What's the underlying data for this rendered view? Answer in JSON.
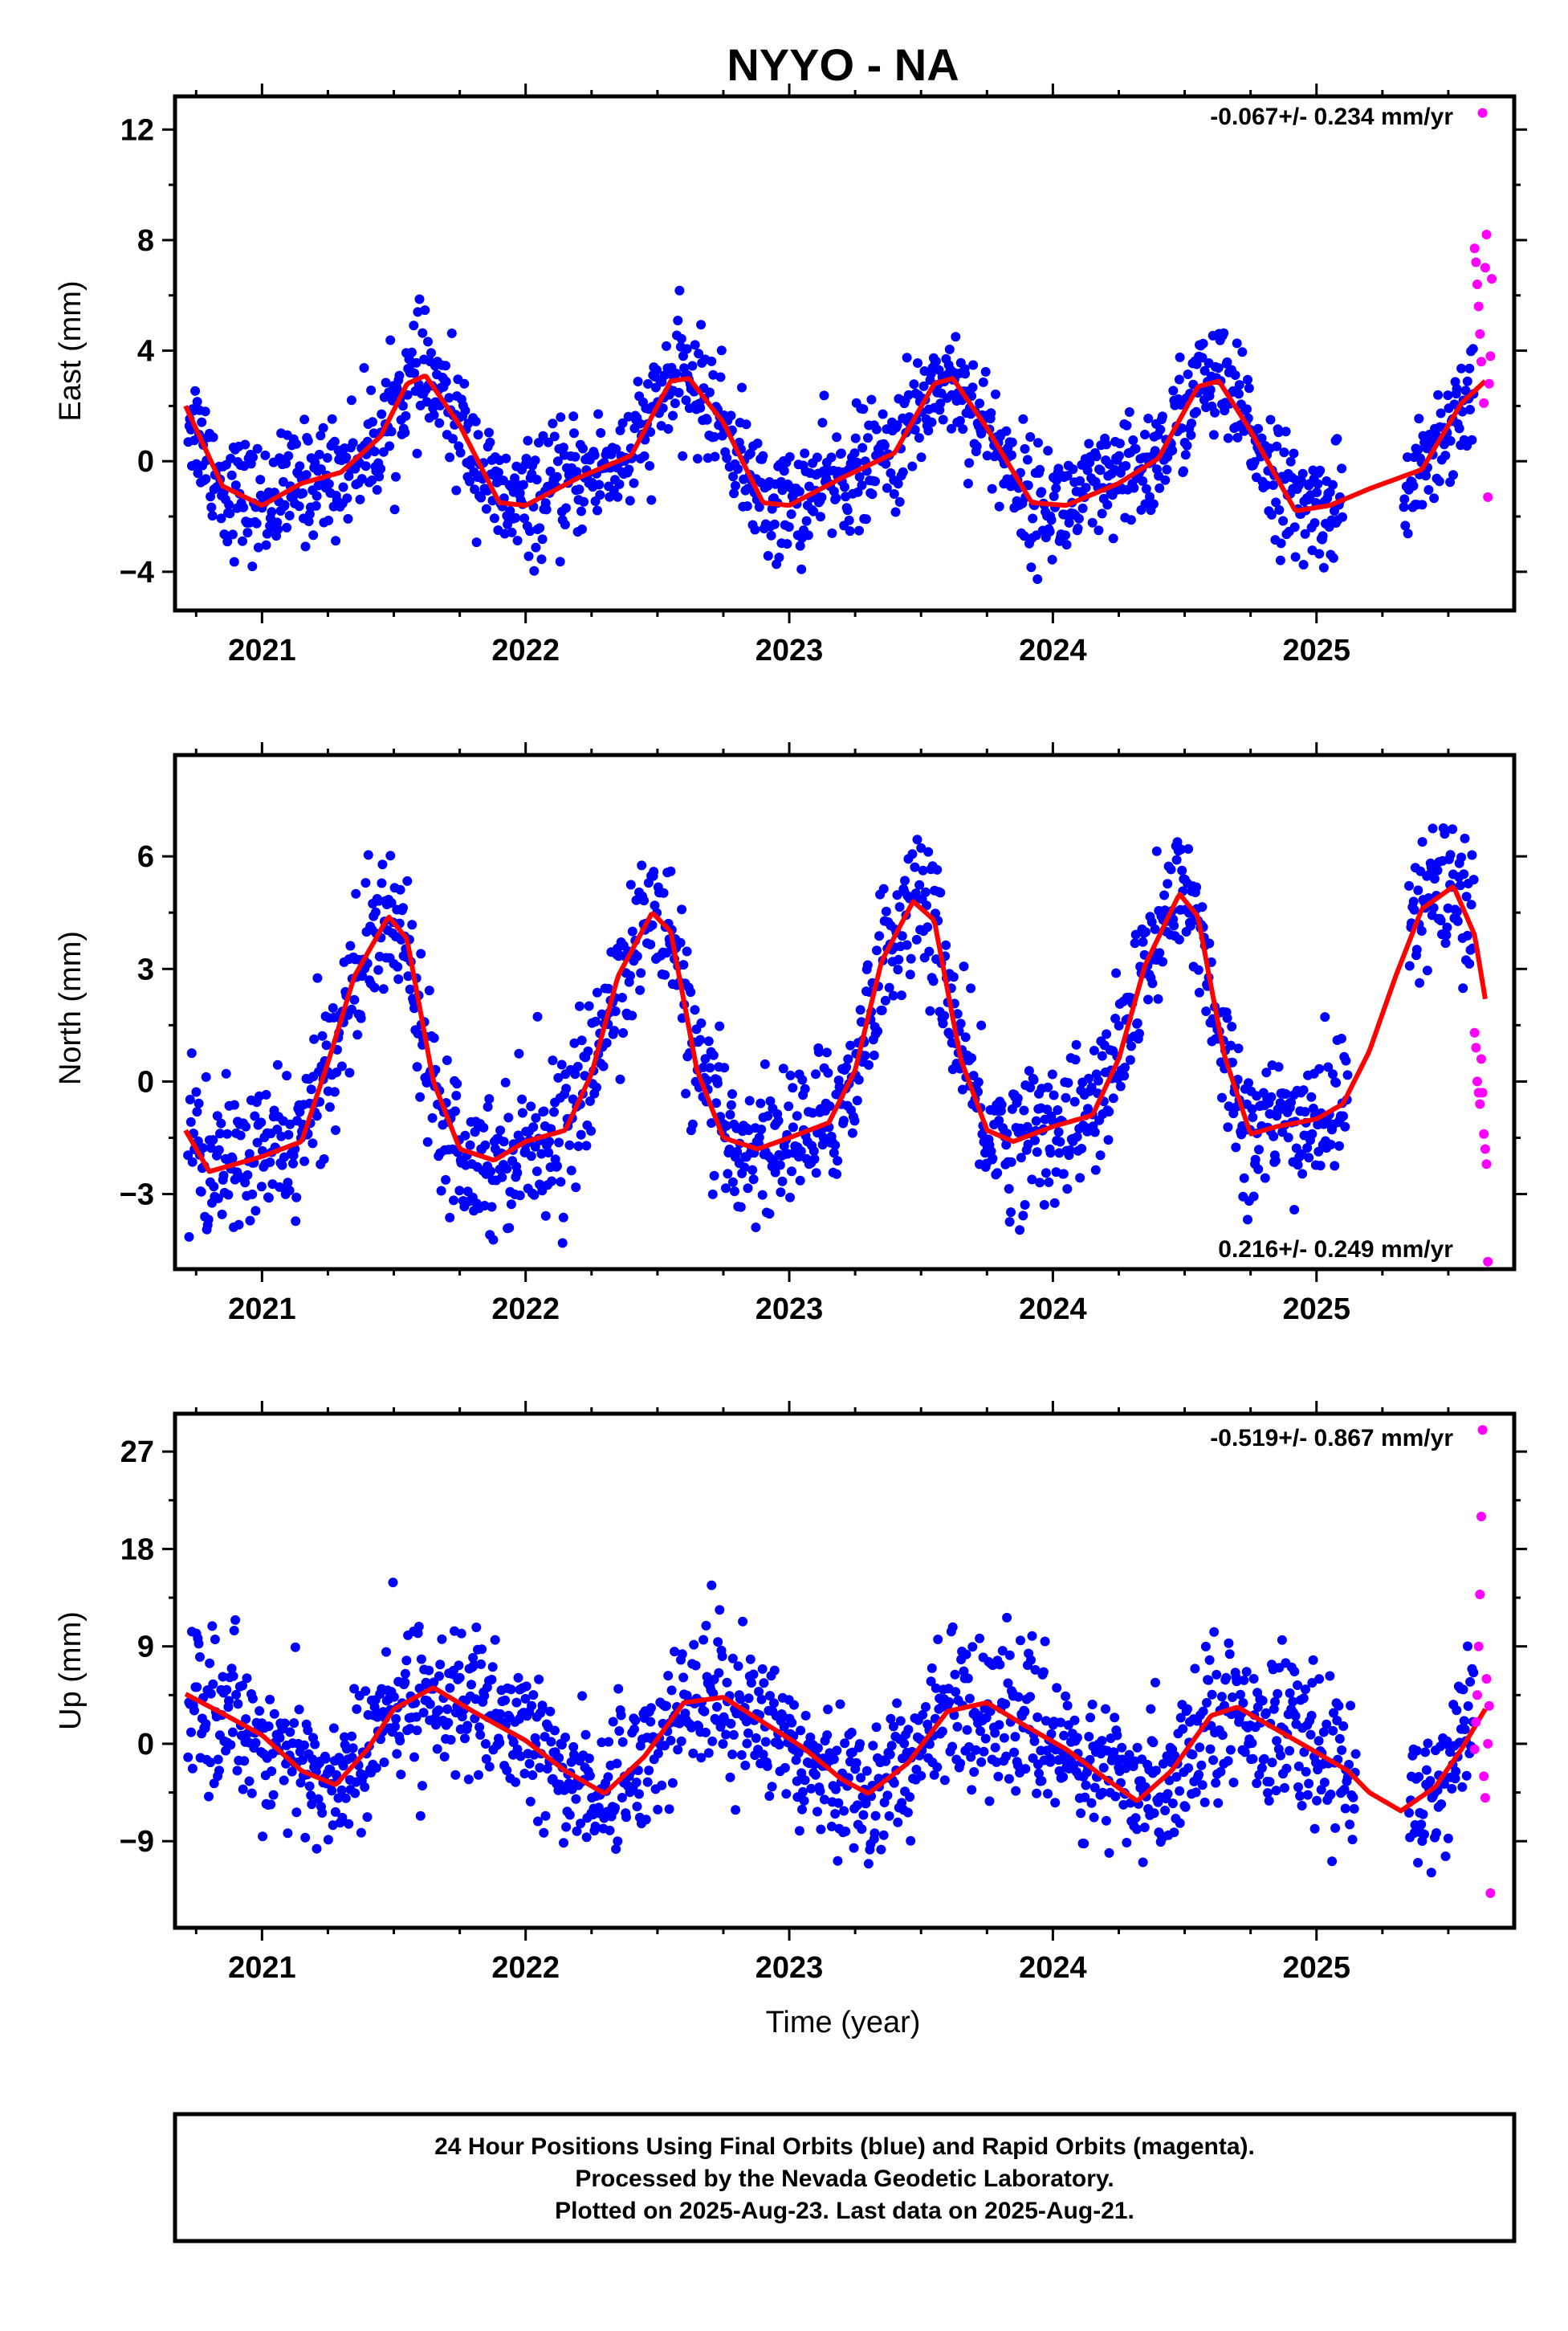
{
  "title": "NYYO - NA",
  "xlabel": "Time (year)",
  "footer": {
    "line1": "24 Hour Positions Using Final Orbits (blue) and Rapid Orbits (magenta).",
    "line2": "Processed by the Nevada Geodetic Laboratory.",
    "line3": "Plotted on 2025-Aug-23. Last data on 2025-Aug-21."
  },
  "colors": {
    "final": "#0000ff",
    "rapid": "#ff00ff",
    "model": "#ff0000"
  },
  "chart_data": [
    {
      "type": "scatter",
      "ylabel": "East (mm)",
      "rate": "-0.067+/- 0.234 mm/yr",
      "xlim": [
        2020.67,
        2025.75
      ],
      "ylim": [
        -5.4,
        13.2
      ],
      "xticks": [
        2021,
        2022,
        2023,
        2024,
        2025
      ],
      "yticks": [
        -4,
        0,
        4,
        8,
        12
      ],
      "yticklabels": [
        "−4",
        "0",
        "4",
        "8",
        "12"
      ],
      "seasonal": {
        "offset": 0.62,
        "amp": 1.75,
        "phase_peak": 0.63,
        "amp2": 0.55,
        "phase2": 0.15
      },
      "model": {
        "x": [
          2020.71,
          2020.85,
          2021.0,
          2021.15,
          2021.3,
          2021.45,
          2021.55,
          2021.62,
          2021.75,
          2021.9,
          2022.0,
          2022.2,
          2022.4,
          2022.55,
          2022.62,
          2022.75,
          2022.9,
          2023.0,
          2023.2,
          2023.4,
          2023.55,
          2023.62,
          2023.75,
          2023.92,
          2024.05,
          2024.25,
          2024.4,
          2024.55,
          2024.63,
          2024.75,
          2024.92,
          2025.05,
          2025.2,
          2025.4,
          2025.55,
          2025.64
        ],
        "y": [
          2.0,
          -0.9,
          -1.6,
          -0.8,
          -0.4,
          0.9,
          2.8,
          3.1,
          1.3,
          -1.5,
          -1.6,
          -0.6,
          0.2,
          2.9,
          3.0,
          1.4,
          -1.5,
          -1.6,
          -0.6,
          0.3,
          2.8,
          3.0,
          1.2,
          -1.5,
          -1.6,
          -0.8,
          0.1,
          2.7,
          2.9,
          1.1,
          -1.8,
          -1.6,
          -1.0,
          -0.3,
          2.1,
          2.9
        ]
      },
      "final_noise": 1.05,
      "final_count": 1450,
      "gap": [
        2025.1,
        2025.33
      ],
      "rapid": {
        "x": [
          2025.6,
          2025.605,
          2025.61,
          2025.615,
          2025.62,
          2025.625,
          2025.63,
          2025.635,
          2025.64,
          2025.645,
          2025.65,
          2025.655,
          2025.66,
          2025.665
        ],
        "y": [
          7.7,
          7.2,
          6.4,
          5.6,
          4.6,
          3.6,
          12.6,
          2.1,
          7.0,
          8.2,
          -1.3,
          2.8,
          3.8,
          6.6
        ]
      }
    },
    {
      "type": "scatter",
      "ylabel": "North (mm)",
      "rate": "0.216+/- 0.249 mm/yr",
      "xlim": [
        2020.67,
        2025.75
      ],
      "ylim": [
        -5.0,
        8.7
      ],
      "xticks": [
        2021,
        2022,
        2023,
        2024,
        2025
      ],
      "yticks": [
        -3,
        0,
        3,
        6
      ],
      "yticklabels": [
        "−3",
        "0",
        "3",
        "6"
      ],
      "model": {
        "x": [
          2020.71,
          2020.8,
          2021.0,
          2021.15,
          2021.25,
          2021.35,
          2021.48,
          2021.55,
          2021.65,
          2021.75,
          2021.88,
          2022.0,
          2022.15,
          2022.25,
          2022.35,
          2022.48,
          2022.55,
          2022.65,
          2022.75,
          2022.88,
          2023.0,
          2023.15,
          2023.25,
          2023.35,
          2023.47,
          2023.55,
          2023.65,
          2023.75,
          2023.85,
          2024.0,
          2024.15,
          2024.25,
          2024.35,
          2024.48,
          2024.55,
          2024.65,
          2024.75,
          2024.85,
          2025.0,
          2025.1,
          2025.2,
          2025.3,
          2025.4,
          2025.52,
          2025.6,
          2025.64
        ],
        "y": [
          -1.3,
          -2.4,
          -2.0,
          -1.6,
          0.5,
          2.8,
          4.4,
          3.8,
          0.0,
          -1.8,
          -2.1,
          -1.6,
          -1.3,
          0.2,
          2.8,
          4.5,
          4.0,
          0.3,
          -1.5,
          -1.8,
          -1.5,
          -1.1,
          0.3,
          3.2,
          4.8,
          4.3,
          0.6,
          -1.3,
          -1.6,
          -1.2,
          -0.9,
          0.6,
          3.1,
          5.0,
          4.4,
          0.7,
          -1.4,
          -1.2,
          -1.0,
          -0.6,
          0.8,
          2.8,
          4.6,
          5.2,
          3.9,
          2.2
        ]
      },
      "final_noise": 0.95,
      "final_count": 1450,
      "gap": [
        2025.12,
        2025.35
      ],
      "rapid": {
        "x": [
          2025.6,
          2025.605,
          2025.61,
          2025.615,
          2025.62,
          2025.625,
          2025.63,
          2025.635,
          2025.64,
          2025.645,
          2025.65
        ],
        "y": [
          1.3,
          0.9,
          0.0,
          -0.3,
          -0.6,
          0.6,
          -0.3,
          -1.4,
          -1.8,
          -2.2,
          -4.8
        ]
      }
    },
    {
      "type": "scatter",
      "ylabel": "Up (mm)",
      "rate": "-0.519+/- 0.867 mm/yr",
      "xlim": [
        2020.67,
        2025.75
      ],
      "ylim": [
        -17.0,
        30.5
      ],
      "xticks": [
        2021,
        2022,
        2023,
        2024,
        2025
      ],
      "yticks": [
        -9,
        0,
        9,
        18,
        27
      ],
      "yticklabels": [
        "−9",
        "0",
        "9",
        "18",
        "27"
      ],
      "model": {
        "x": [
          2020.71,
          2020.85,
          2021.0,
          2021.15,
          2021.28,
          2021.4,
          2021.5,
          2021.65,
          2021.8,
          2022.0,
          2022.15,
          2022.3,
          2022.45,
          2022.6,
          2022.75,
          2022.9,
          2023.05,
          2023.2,
          2023.3,
          2023.45,
          2023.6,
          2023.75,
          2023.9,
          2024.05,
          2024.2,
          2024.32,
          2024.45,
          2024.6,
          2024.7,
          2024.85,
          2025.0,
          2025.12,
          2025.2,
          2025.32,
          2025.45,
          2025.55,
          2025.64
        ],
        "y": [
          4.6,
          2.8,
          0.8,
          -2.5,
          -3.8,
          -0.5,
          3.2,
          5.2,
          3.0,
          0.3,
          -2.5,
          -4.6,
          -1.2,
          3.8,
          4.3,
          2.0,
          -0.3,
          -3.3,
          -4.6,
          -1.8,
          3.0,
          3.8,
          1.6,
          -0.5,
          -3.2,
          -5.3,
          -2.5,
          2.6,
          3.4,
          1.3,
          -0.8,
          -2.5,
          -4.5,
          -6.2,
          -4.0,
          -0.5,
          3.2
        ]
      },
      "final_noise": 3.3,
      "final_count": 1450,
      "gap": [
        2025.15,
        2025.35
      ],
      "rapid": {
        "x": [
          2025.6,
          2025.605,
          2025.61,
          2025.615,
          2025.62,
          2025.625,
          2025.63,
          2025.635,
          2025.64,
          2025.645,
          2025.65,
          2025.655,
          2025.66
        ],
        "y": [
          -0.5,
          2.0,
          4.5,
          9.0,
          13.8,
          21.0,
          29.0,
          -3.0,
          -5.0,
          6.0,
          0.0,
          3.5,
          -13.8
        ]
      }
    }
  ]
}
